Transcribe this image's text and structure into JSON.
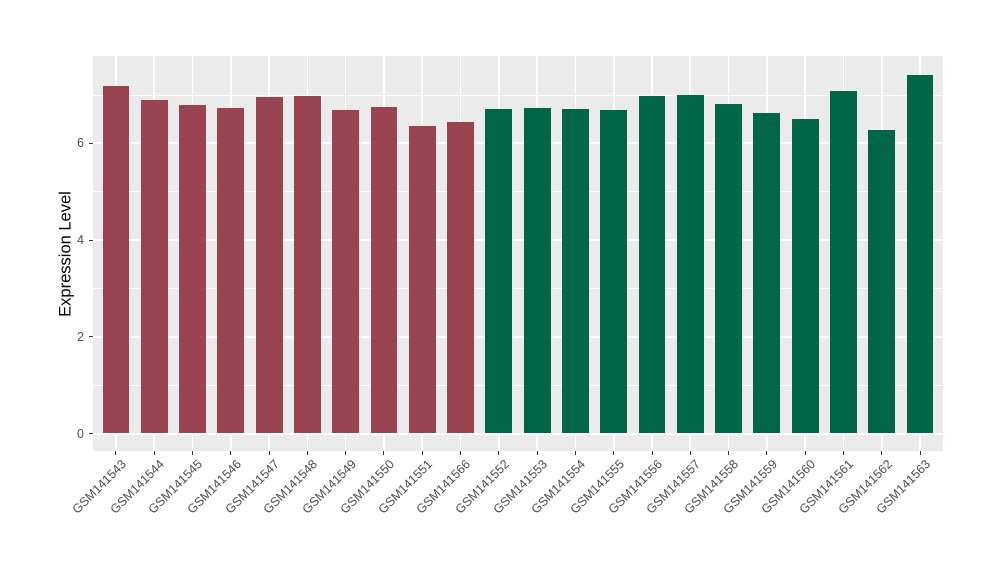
{
  "chart_data": {
    "type": "bar",
    "title": "",
    "xlabel": "",
    "ylabel": "Expression Level",
    "ylim": [
      -0.37,
      7.8
    ],
    "yticks_major": [
      0,
      2,
      4,
      6
    ],
    "yticks_minor": [
      1,
      3,
      5,
      7
    ],
    "grid": "on",
    "legend_position": "none",
    "bar_width_ratio": 0.7,
    "x_label_angle": 45,
    "groups": [
      {
        "name": "group-1-maroon",
        "color": "#9A4451"
      },
      {
        "name": "group-2-green",
        "color": "#006647"
      }
    ],
    "bars": [
      {
        "label": "GSM141543",
        "value": 7.19,
        "group": 0
      },
      {
        "label": "GSM141544",
        "value": 6.9,
        "group": 0
      },
      {
        "label": "GSM141545",
        "value": 6.8,
        "group": 0
      },
      {
        "label": "GSM141546",
        "value": 6.74,
        "group": 0
      },
      {
        "label": "GSM141547",
        "value": 6.96,
        "group": 0
      },
      {
        "label": "GSM141548",
        "value": 6.99,
        "group": 0
      },
      {
        "label": "GSM141549",
        "value": 6.7,
        "group": 0
      },
      {
        "label": "GSM141550",
        "value": 6.75,
        "group": 0
      },
      {
        "label": "GSM141551",
        "value": 6.37,
        "group": 0
      },
      {
        "label": "GSM141566",
        "value": 6.45,
        "group": 0
      },
      {
        "label": "GSM141552",
        "value": 6.72,
        "group": 1
      },
      {
        "label": "GSM141553",
        "value": 6.74,
        "group": 1
      },
      {
        "label": "GSM141554",
        "value": 6.72,
        "group": 1
      },
      {
        "label": "GSM141555",
        "value": 6.7,
        "group": 1
      },
      {
        "label": "GSM141556",
        "value": 6.99,
        "group": 1
      },
      {
        "label": "GSM141557",
        "value": 7.0,
        "group": 1
      },
      {
        "label": "GSM141558",
        "value": 6.82,
        "group": 1
      },
      {
        "label": "GSM141559",
        "value": 6.62,
        "group": 1
      },
      {
        "label": "GSM141560",
        "value": 6.5,
        "group": 1
      },
      {
        "label": "GSM141561",
        "value": 7.09,
        "group": 1
      },
      {
        "label": "GSM141562",
        "value": 6.28,
        "group": 1
      },
      {
        "label": "GSM141563",
        "value": 7.42,
        "group": 1
      }
    ],
    "colors": {
      "figure_bg": "#FFFFFF",
      "panel_bg": "#EBEBEB",
      "gridline": "#FFFFFF",
      "tick_mark": "#333333",
      "axis_text": "#4D4D4D",
      "axis_title": "#000000"
    }
  }
}
